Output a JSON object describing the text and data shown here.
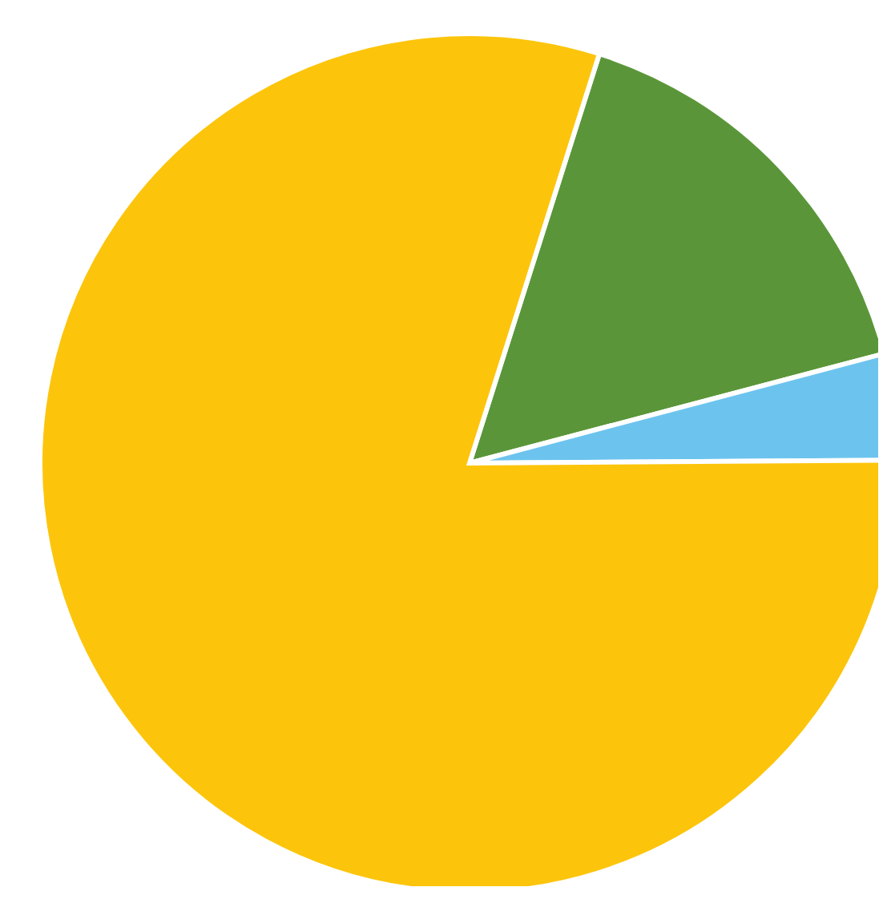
{
  "chart_data": {
    "type": "pie",
    "categories": [
      null,
      null,
      null
    ],
    "values": [
      16,
      4,
      80
    ],
    "colors": [
      "#5a9639",
      "#6cc4ee",
      "#fcc50c"
    ]
  }
}
